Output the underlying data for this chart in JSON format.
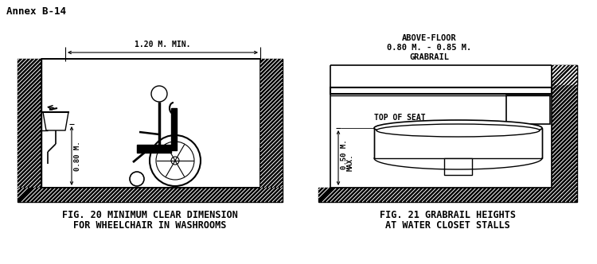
{
  "bg_color": "#ffffff",
  "annex_text": "Annex B-14",
  "fig20_caption_line1": "FIG. 20 MINIMUM CLEAR DIMENSION",
  "fig20_caption_line2": "FOR WHEELCHAIR IN WASHROOMS",
  "fig21_caption_line1": "FIG. 21 GRABRAIL HEIGHTS",
  "fig21_caption_line2": "AT WATER CLOSET STALLS",
  "fig20_dim_text": "1.20 M. MIN.",
  "fig20_height_text": "0.80 M.",
  "fig21_grabrail_line1": "GRABRAIL",
  "fig21_grabrail_line2": "0.80 M. - 0.85 M.",
  "fig21_grabrail_line3": "ABOVE-FLOOR",
  "fig21_seat_text": "TOP OF SEAT",
  "fig21_height_text1": "0.50 M.",
  "fig21_height_text2": "MAX.",
  "caption_fontsize": 8.5,
  "annex_fontsize": 9,
  "label_fontsize": 6.5,
  "dim_label_fontsize": 7.0
}
